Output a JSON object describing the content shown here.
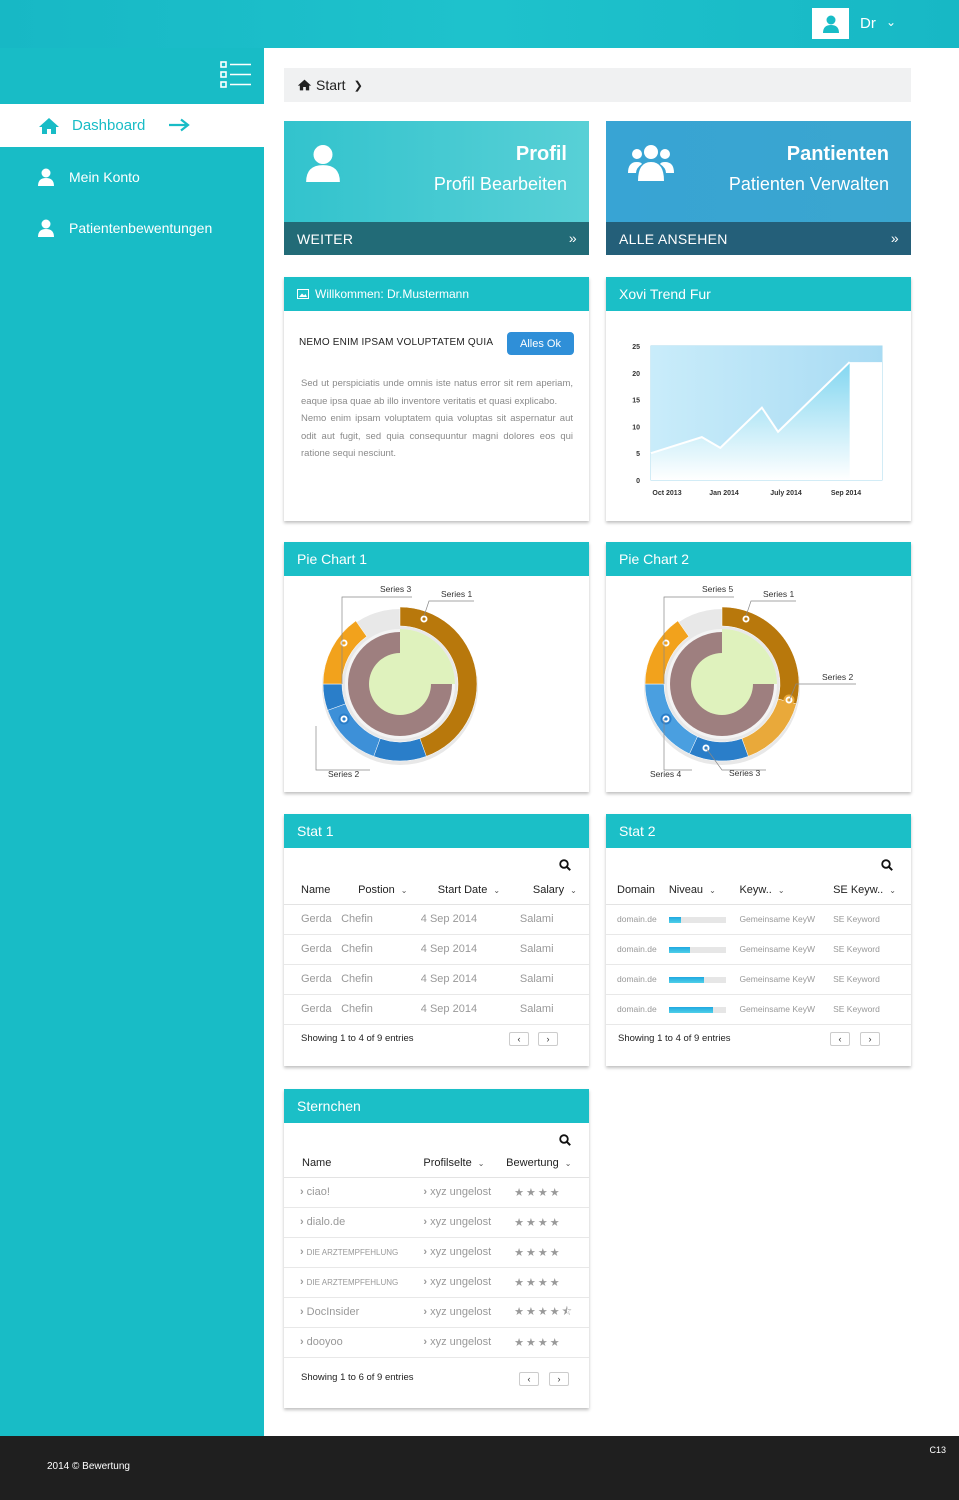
{
  "header": {
    "user_name": "Dr"
  },
  "sidebar": {
    "items": [
      {
        "label": "Dashboard"
      },
      {
        "label": "Mein Konto"
      },
      {
        "label": "Patientenbewentungen"
      }
    ]
  },
  "breadcrumb": {
    "label": "Start"
  },
  "tiles": [
    {
      "title": "Profil",
      "subtitle": "Profil Bearbeiten",
      "footer": "WEITER"
    },
    {
      "title": "Pantienten",
      "subtitle": "Patienten Verwalten",
      "footer": "ALLE ANSEHEN"
    }
  ],
  "welcome": {
    "title": "Willkommen: Dr.Mustermann",
    "heading": "NEMO ENIM IPSAM VOLUPTATEM QUIA",
    "button": "Alles Ok",
    "paragraph1": "Sed ut perspiciatis unde omnis iste natus error sit rem aperiam, eaque ipsa quae ab illo inventore veritatis et quasi explicabo.",
    "paragraph2": "Nemo enim ipsam voluptatem quia voluptas sit aspernatur aut odit aut fugit, sed quia consequuntur magni dolores eos qui ratione  sequi nesciunt."
  },
  "trend": {
    "title": "Xovi Trend Fur"
  },
  "chart_data": [
    {
      "type": "area",
      "title": "Xovi Trend Fur",
      "x_ticks": [
        "Oct 2013",
        "Jan 2014",
        "July 2014",
        "Sep 2014"
      ],
      "y_ticks": [
        "0",
        "5",
        "10",
        "15",
        "20",
        "25"
      ],
      "ylim": [
        0,
        25
      ],
      "points": [
        [
          0,
          5
        ],
        [
          0.22,
          8
        ],
        [
          0.3,
          6
        ],
        [
          0.48,
          13.5
        ],
        [
          0.55,
          9
        ],
        [
          0.86,
          22
        ]
      ],
      "colors": {
        "fill": "#7fd2ee",
        "line": "#ffffff",
        "plot_bg": "#bfe6f7"
      }
    },
    {
      "type": "pie",
      "title": "Pie Chart 1",
      "series": [
        {
          "name": "Series 1"
        },
        {
          "name": "Series 2"
        },
        {
          "name": "Series 3"
        }
      ],
      "outer_segments": [
        {
          "from": 0,
          "to": 160,
          "color": "#b8780c"
        },
        {
          "from": 160,
          "to": 200,
          "color": "#2a7ec9"
        },
        {
          "from": 200,
          "to": 250,
          "color": "#3d90d8"
        },
        {
          "from": 250,
          "to": 270,
          "color": "#2a7ec9"
        },
        {
          "from": 270,
          "to": 325,
          "color": "#f2a21c"
        }
      ],
      "inner_ring_color": "#9e7f7f",
      "center_color": "#dff2bd"
    },
    {
      "type": "pie",
      "title": "Pie Chart 2",
      "series": [
        {
          "name": "Series 1"
        },
        {
          "name": "Series 2"
        },
        {
          "name": "Series 3"
        },
        {
          "name": "Series 4"
        },
        {
          "name": "Series 5"
        }
      ],
      "outer_segments": [
        {
          "from": 0,
          "to": 105,
          "color": "#b8780c"
        },
        {
          "from": 105,
          "to": 160,
          "color": "#e9a93a"
        },
        {
          "from": 160,
          "to": 205,
          "color": "#2a7ec9"
        },
        {
          "from": 205,
          "to": 270,
          "color": "#4a9fe0"
        },
        {
          "from": 270,
          "to": 325,
          "color": "#f2a21c"
        }
      ],
      "inner_ring_color": "#9e7f7f",
      "center_color": "#dff2bd"
    }
  ],
  "pie1": {
    "title": "Pie Chart 1",
    "labels": [
      "Series 3",
      "Series 1",
      "Series 2"
    ]
  },
  "pie2": {
    "title": "Pie Chart 2",
    "labels": [
      "Series 5",
      "Series 1",
      "Series 2",
      "Series 4",
      "Series 3"
    ]
  },
  "stat1": {
    "title": "Stat 1",
    "columns": [
      "Name",
      "Postion",
      "Start Date",
      "Salary"
    ],
    "rows": [
      [
        "Gerda",
        "Chefin",
        "4 Sep 2014",
        "Salami"
      ],
      [
        "Gerda",
        "Chefin",
        "4 Sep 2014",
        "Salami"
      ],
      [
        "Gerda",
        "Chefin",
        "4 Sep 2014",
        "Salami"
      ],
      [
        "Gerda",
        "Chefin",
        "4 Sep 2014",
        "Salami"
      ]
    ],
    "showing": "Showing 1 to 4 of 9 entries"
  },
  "stat2": {
    "title": "Stat 2",
    "columns": [
      "Domain",
      "Niveau",
      "Keyw..",
      "SE Keyw.."
    ],
    "rows": [
      {
        "domain": "domain.de",
        "niveau": 0.22,
        "keyword": "Gemeinsame KeyW",
        "se": "SE Keyword"
      },
      {
        "domain": "domain.de",
        "niveau": 0.38,
        "keyword": "Gemeinsame KeyW",
        "se": "SE Keyword"
      },
      {
        "domain": "domain.de",
        "niveau": 0.62,
        "keyword": "Gemeinsame KeyW",
        "se": "SE Keyword"
      },
      {
        "domain": "domain.de",
        "niveau": 0.78,
        "keyword": "Gemeinsame KeyW",
        "se": "SE Keyword"
      }
    ],
    "showing": "Showing 1 to 4 of 9 entries"
  },
  "sternchen": {
    "title": "Sternchen",
    "columns": [
      "Name",
      "Profilselte",
      "Bewertung"
    ],
    "rows": [
      {
        "name": "ciao!",
        "profil": "xyz ungelost",
        "rating": 4
      },
      {
        "name": "dialo.de",
        "profil": "xyz ungelost",
        "rating": 4
      },
      {
        "name": "DIE ARZTEMPFEHLUNG",
        "profil": "xyz ungelost",
        "rating": 4
      },
      {
        "name": "DIE ARZTEMPFEHLUNG",
        "profil": "xyz ungelost",
        "rating": 4
      },
      {
        "name": "DocInsider",
        "profil": "xyz ungelost",
        "rating": 4.5
      },
      {
        "name": "dooyoo",
        "profil": "xyz ungelost",
        "rating": 4
      }
    ],
    "showing": "Showing 1 to 6 of 9 entries"
  },
  "footer": {
    "copyright": "2014 © Bewertung",
    "version": "C13"
  },
  "colors": {
    "accent": "#1bbfc7",
    "tile1": "#3cc6cf",
    "tile2": "#3a9fd0",
    "footer": "#1f1f1f"
  }
}
